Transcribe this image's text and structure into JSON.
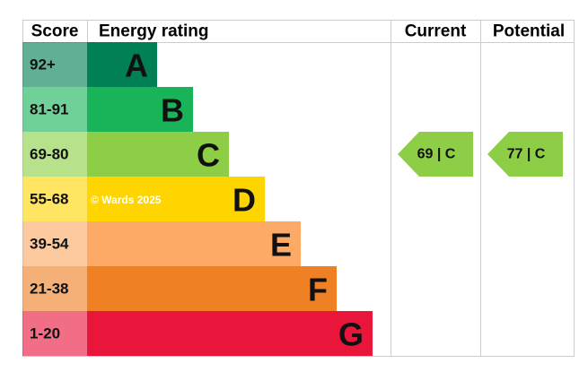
{
  "header": {
    "score": "Score",
    "rating": "Energy rating",
    "current": "Current",
    "potential": "Potential"
  },
  "bands": [
    {
      "score": "92+",
      "letter": "A",
      "color": "#008054"
    },
    {
      "score": "81-91",
      "letter": "B",
      "color": "#19b459"
    },
    {
      "score": "69-80",
      "letter": "C",
      "color": "#8dce46"
    },
    {
      "score": "55-68",
      "letter": "D",
      "color": "#ffd500"
    },
    {
      "score": "39-54",
      "letter": "E",
      "color": "#fcaa65"
    },
    {
      "score": "21-38",
      "letter": "F",
      "color": "#ef8023"
    },
    {
      "score": "1-20",
      "letter": "G",
      "color": "#e9153b"
    }
  ],
  "current": {
    "value": 69,
    "label": "69 | C"
  },
  "potential": {
    "value": 77,
    "label": "77 | C"
  },
  "watermark": "© Wards 2025"
}
